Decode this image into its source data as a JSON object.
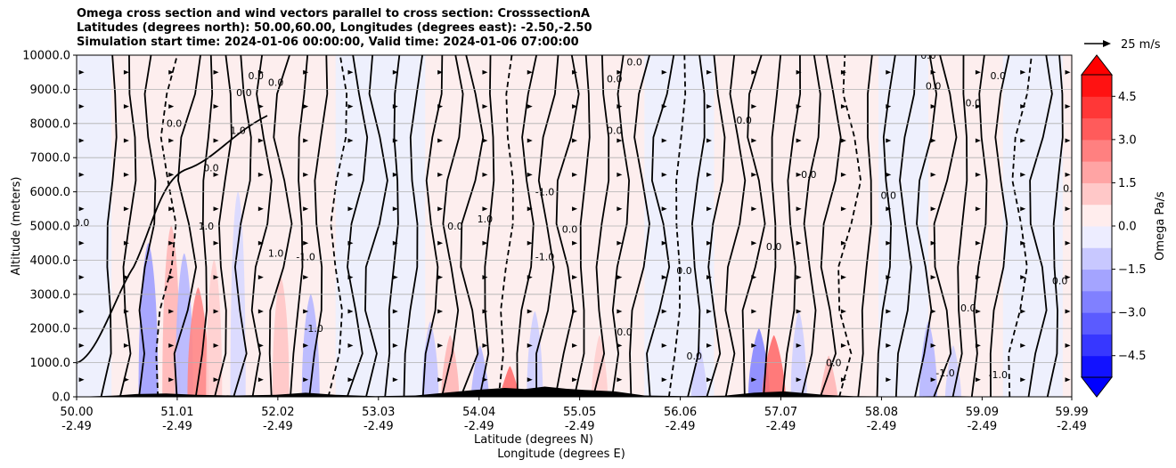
{
  "chart_data": {
    "type": "heatmap",
    "title_lines": [
      "Omega cross section and wind vectors parallel to cross section: CrosssectionA",
      "Latitudes (degrees north): 50.00,60.00, Longitudes (degrees east): -2.50,-2.50",
      "Simulation start time: 2024-01-06 00:00:00, Valid time: 2024-01-06 07:00:00"
    ],
    "ylabel": "Altitude (meters)",
    "xlabel_lines": [
      "Latitude (degrees N)",
      "Longitude (degrees E)"
    ],
    "ylim": [
      0,
      10000
    ],
    "y_ticks": [
      {
        "value": 0,
        "label": "0.0"
      },
      {
        "value": 1000,
        "label": "1000.0"
      },
      {
        "value": 2000,
        "label": "2000.0"
      },
      {
        "value": 3000,
        "label": "3000.0"
      },
      {
        "value": 4000,
        "label": "4000.0"
      },
      {
        "value": 5000,
        "label": "5000.0"
      },
      {
        "value": 6000,
        "label": "6000.0"
      },
      {
        "value": 7000,
        "label": "7000.0"
      },
      {
        "value": 8000,
        "label": "8000.0"
      },
      {
        "value": 9000,
        "label": "9000.0"
      },
      {
        "value": 10000,
        "label": "10000.0"
      }
    ],
    "xlim": [
      50.0,
      59.99
    ],
    "x_ticks": [
      {
        "lat": 50.0,
        "label": "50.00",
        "lon_label": "-2.49"
      },
      {
        "lat": 51.01,
        "label": "51.01",
        "lon_label": "-2.49"
      },
      {
        "lat": 52.02,
        "label": "52.02",
        "lon_label": "-2.49"
      },
      {
        "lat": 53.03,
        "label": "53.03",
        "lon_label": "-2.49"
      },
      {
        "lat": 54.04,
        "label": "54.04",
        "lon_label": "-2.49"
      },
      {
        "lat": 55.05,
        "label": "55.05",
        "lon_label": "-2.49"
      },
      {
        "lat": 56.06,
        "label": "56.06",
        "lon_label": "-2.49"
      },
      {
        "lat": 57.07,
        "label": "57.07",
        "lon_label": "-2.49"
      },
      {
        "lat": 58.08,
        "label": "58.08",
        "lon_label": "-2.49"
      },
      {
        "lat": 59.09,
        "label": "59.09",
        "lon_label": "-2.49"
      },
      {
        "lat": 59.99,
        "label": "59.99",
        "lon_label": "-2.49"
      }
    ],
    "colorbar": {
      "label": "Omega Pa/s",
      "range": [
        -5.25,
        5.25
      ],
      "ticks": [
        {
          "value": 4.5,
          "label": "4.5"
        },
        {
          "value": 3.0,
          "label": "3.0"
        },
        {
          "value": 1.5,
          "label": "1.5"
        },
        {
          "value": 0.0,
          "label": "0.0"
        },
        {
          "value": -1.5,
          "label": "−1.5"
        },
        {
          "value": -3.0,
          "label": "−3.0"
        },
        {
          "value": -4.5,
          "label": "−4.5"
        }
      ],
      "extend": "both",
      "high_color": "#ff0000",
      "low_color": "#0000ff"
    },
    "vector_key": {
      "label": "25 m/s",
      "speed": 25
    },
    "colored_bands": [
      {
        "lat": 50.72,
        "omega": -2.0,
        "top": 4500
      },
      {
        "lat": 50.95,
        "omega": 1.5,
        "top": 5000
      },
      {
        "lat": 51.08,
        "omega": -1.5,
        "top": 4200
      },
      {
        "lat": 51.22,
        "omega": 2.5,
        "top": 3200
      },
      {
        "lat": 51.38,
        "omega": 1.0,
        "top": 4000
      },
      {
        "lat": 51.62,
        "omega": -0.8,
        "top": 6000
      },
      {
        "lat": 52.05,
        "omega": 1.2,
        "top": 3500
      },
      {
        "lat": 52.35,
        "omega": -1.5,
        "top": 3000
      },
      {
        "lat": 53.55,
        "omega": -1.2,
        "top": 2200
      },
      {
        "lat": 53.75,
        "omega": 1.5,
        "top": 1800
      },
      {
        "lat": 54.05,
        "omega": -1.5,
        "top": 1500
      },
      {
        "lat": 54.35,
        "omega": 3.0,
        "top": 900
      },
      {
        "lat": 54.6,
        "omega": -1.0,
        "top": 2500
      },
      {
        "lat": 55.25,
        "omega": 1.0,
        "top": 1800
      },
      {
        "lat": 56.25,
        "omega": -1.0,
        "top": 1500
      },
      {
        "lat": 56.85,
        "omega": -2.5,
        "top": 2000
      },
      {
        "lat": 57.0,
        "omega": 3.0,
        "top": 1800
      },
      {
        "lat": 57.25,
        "omega": -1.0,
        "top": 2500
      },
      {
        "lat": 57.55,
        "omega": 1.5,
        "top": 1200
      },
      {
        "lat": 58.55,
        "omega": -1.5,
        "top": 2200
      },
      {
        "lat": 58.8,
        "omega": -1.0,
        "top": 1500
      }
    ],
    "contour_labels": [
      {
        "text": "0.0",
        "lat": 50.05,
        "alt": 5000
      },
      {
        "text": "0.0",
        "lat": 50.98,
        "alt": 7900
      },
      {
        "text": "0.0",
        "lat": 51.35,
        "alt": 6600
      },
      {
        "text": "1.0",
        "lat": 51.62,
        "alt": 7700
      },
      {
        "text": "0.0",
        "lat": 51.68,
        "alt": 8800
      },
      {
        "text": "0.0",
        "lat": 51.8,
        "alt": 9300
      },
      {
        "text": "0.0",
        "lat": 52.0,
        "alt": 9100
      },
      {
        "text": "1.0",
        "lat": 51.3,
        "alt": 4900
      },
      {
        "text": "1.0",
        "lat": 52.0,
        "alt": 4100
      },
      {
        "text": "-1.0",
        "lat": 52.3,
        "alt": 4000
      },
      {
        "text": "-1.0",
        "lat": 52.38,
        "alt": 1900
      },
      {
        "text": "0.0",
        "lat": 53.8,
        "alt": 4900
      },
      {
        "text": "1.0",
        "lat": 54.1,
        "alt": 5100
      },
      {
        "text": "-1.0",
        "lat": 54.7,
        "alt": 5900
      },
      {
        "text": "0.0",
        "lat": 54.95,
        "alt": 4800
      },
      {
        "text": "-1.0",
        "lat": 54.7,
        "alt": 4000
      },
      {
        "text": "0.0",
        "lat": 55.4,
        "alt": 7700
      },
      {
        "text": "0.0",
        "lat": 55.4,
        "alt": 9200
      },
      {
        "text": "0.0",
        "lat": 55.6,
        "alt": 9700
      },
      {
        "text": "0.0",
        "lat": 56.7,
        "alt": 8000
      },
      {
        "text": "0.0",
        "lat": 56.1,
        "alt": 3600
      },
      {
        "text": "0.0",
        "lat": 57.0,
        "alt": 4300
      },
      {
        "text": "0.0",
        "lat": 57.35,
        "alt": 6400
      },
      {
        "text": "0.0",
        "lat": 58.15,
        "alt": 5800
      },
      {
        "text": "0.0",
        "lat": 58.55,
        "alt": 9900
      },
      {
        "text": "0.0",
        "lat": 58.6,
        "alt": 9000
      },
      {
        "text": "0.0",
        "lat": 59.0,
        "alt": 8500
      },
      {
        "text": "0.0",
        "lat": 59.25,
        "alt": 9300
      },
      {
        "text": "0.0",
        "lat": 59.87,
        "alt": 3300
      },
      {
        "text": "0.0",
        "lat": 59.98,
        "alt": 6000
      },
      {
        "text": "-1.0",
        "lat": 59.25,
        "alt": 550
      },
      {
        "text": "-1.0",
        "lat": 58.72,
        "alt": 600
      },
      {
        "text": "0.0",
        "lat": 58.95,
        "alt": 2500
      },
      {
        "text": "0.0",
        "lat": 57.6,
        "alt": 900
      },
      {
        "text": "0.0",
        "lat": 56.2,
        "alt": 1100
      },
      {
        "text": "0.0",
        "lat": 55.5,
        "alt": 1800
      }
    ]
  }
}
